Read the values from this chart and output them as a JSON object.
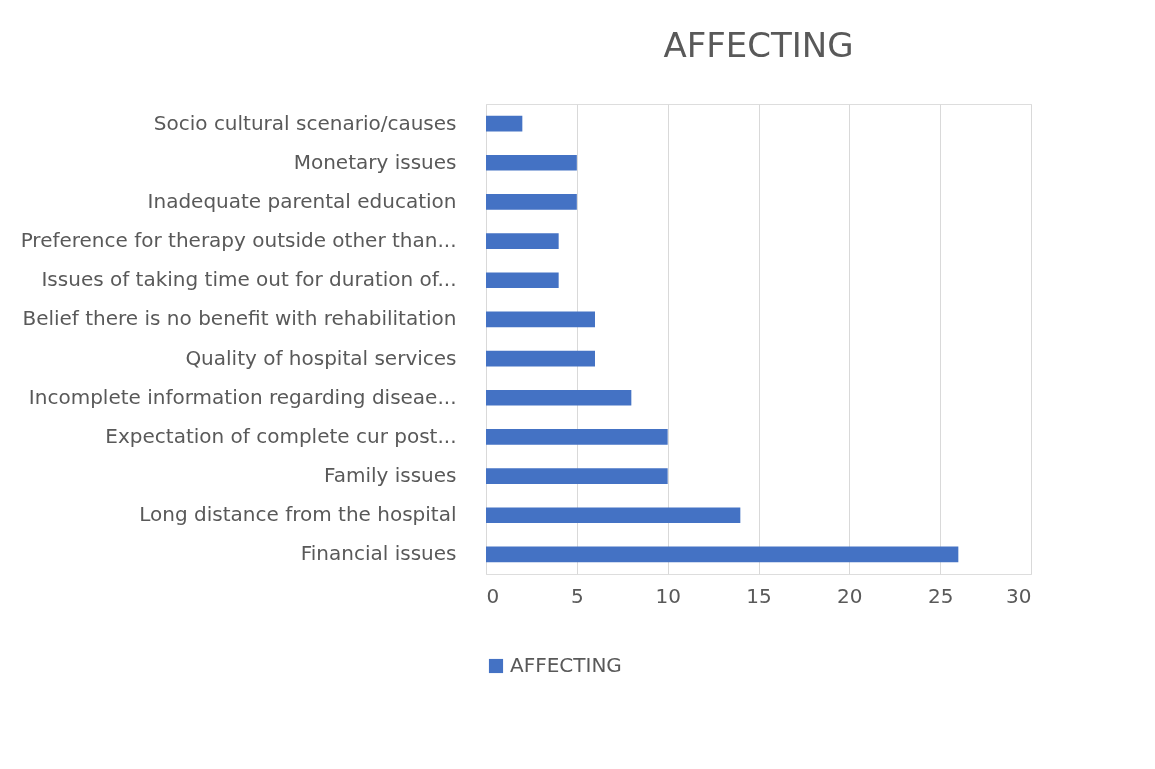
{
  "chart_data": {
    "type": "bar",
    "orientation": "horizontal",
    "title": "AFFECTING",
    "categories": [
      "Socio cultural scenario/causes",
      "Monetary issues",
      "Inadequate parental education",
      "Preference for therapy outside other than...",
      "Issues of taking time out for duration of...",
      "Belief there is no benefit with rehabilitation",
      "Quality of hospital services",
      "Incomplete information regarding diseae...",
      "Expectation of complete cur post...",
      "Family issues",
      "Long distance from the hospital",
      "Financial issues"
    ],
    "series": [
      {
        "name": "AFFECTING",
        "color": "#4472c4",
        "values": [
          2,
          5,
          5,
          4,
          4,
          6,
          6,
          8,
          10,
          10,
          14,
          26
        ]
      }
    ],
    "xlim": [
      0,
      30
    ],
    "xticks": [
      0,
      5,
      10,
      15,
      20,
      25,
      30
    ],
    "grid": "x",
    "legend": "bottom"
  }
}
